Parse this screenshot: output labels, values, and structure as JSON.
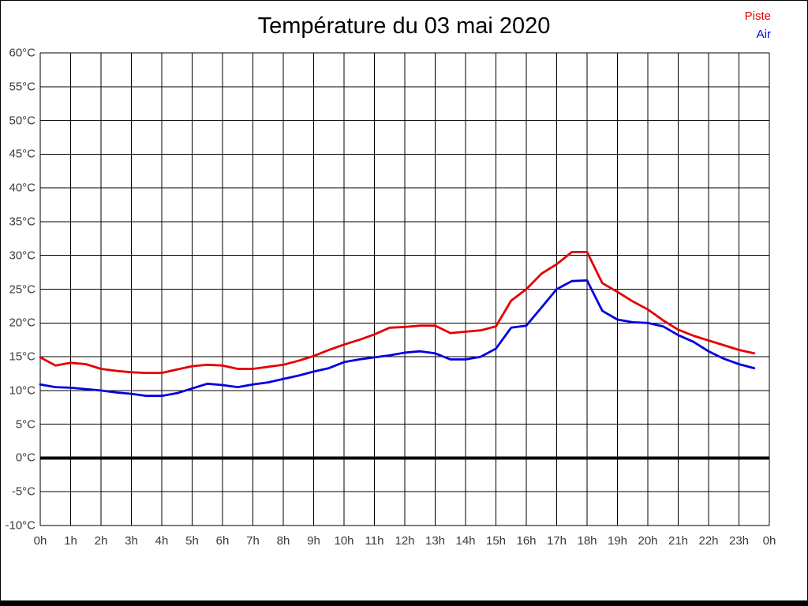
{
  "title": "Température du 03 mai 2020",
  "chart_data": {
    "type": "line",
    "title": "Température du 03 mai 2020",
    "xlabel": "",
    "ylabel": "",
    "x_unit": "hours",
    "xlim": [
      0,
      24
    ],
    "ylim": [
      -10,
      60
    ],
    "grid": true,
    "legend_position": "top-right",
    "axis_color": "#000000",
    "tick_label_color": "#3a3a3a",
    "zero_line": {
      "value": 0,
      "color": "#000000",
      "width": 4
    },
    "x": [
      0,
      0.5,
      1,
      1.5,
      2,
      2.5,
      3,
      3.5,
      4,
      4.5,
      5,
      5.5,
      6,
      6.5,
      7,
      7.5,
      8,
      8.5,
      9,
      9.5,
      10,
      10.5,
      11,
      11.5,
      12,
      12.5,
      13,
      13.5,
      14,
      14.5,
      15,
      15.5,
      16,
      16.5,
      17,
      17.5,
      18,
      18.5,
      19,
      19.5,
      20,
      20.5,
      21,
      21.5,
      22,
      22.5,
      23,
      23.5
    ],
    "series": [
      {
        "name": "Piste",
        "color": "#e40000",
        "values": [
          14.9,
          13.7,
          14.1,
          13.9,
          13.2,
          12.9,
          12.7,
          12.6,
          12.6,
          13.1,
          13.6,
          13.8,
          13.7,
          13.2,
          13.2,
          13.5,
          13.8,
          14.4,
          15.1,
          16.0,
          16.8,
          17.5,
          18.3,
          19.3,
          19.4,
          19.6,
          19.6,
          18.5,
          18.7,
          18.9,
          19.5,
          23.3,
          25.0,
          27.3,
          28.7,
          30.5,
          30.5,
          25.9,
          24.6,
          23.2,
          22.0,
          20.4,
          19.0,
          18.1,
          17.4,
          16.7,
          16.0,
          15.5
        ]
      },
      {
        "name": "Air",
        "color": "#0000e0",
        "values": [
          10.9,
          10.5,
          10.4,
          10.2,
          10.0,
          9.7,
          9.5,
          9.2,
          9.2,
          9.6,
          10.3,
          11.0,
          10.8,
          10.5,
          10.9,
          11.2,
          11.7,
          12.2,
          12.8,
          13.3,
          14.2,
          14.6,
          14.9,
          15.2,
          15.6,
          15.8,
          15.5,
          14.6,
          14.6,
          15.0,
          16.2,
          19.3,
          19.6,
          22.3,
          25.0,
          26.2,
          26.3,
          21.8,
          20.5,
          20.1,
          20.0,
          19.5,
          18.2,
          17.2,
          15.8,
          14.7,
          13.9,
          13.3
        ]
      }
    ],
    "y_ticks": [
      60,
      55,
      50,
      45,
      40,
      35,
      30,
      25,
      20,
      15,
      10,
      5,
      0,
      -5,
      -10
    ],
    "y_tick_labels": [
      "60°C",
      "55°C",
      "50°C",
      "45°C",
      "40°C",
      "35°C",
      "30°C",
      "25°C",
      "20°C",
      "15°C",
      "10°C",
      "5°C",
      "0°C",
      "-5°C",
      "-10°C"
    ],
    "x_tick_hours": [
      0,
      1,
      2,
      3,
      4,
      5,
      6,
      7,
      8,
      9,
      10,
      11,
      12,
      13,
      14,
      15,
      16,
      17,
      18,
      19,
      20,
      21,
      22,
      23,
      24
    ],
    "x_tick_labels": [
      "0h",
      "1h",
      "2h",
      "3h",
      "4h",
      "5h",
      "6h",
      "7h",
      "8h",
      "9h",
      "10h",
      "11h",
      "12h",
      "13h",
      "14h",
      "15h",
      "16h",
      "17h",
      "18h",
      "19h",
      "20h",
      "21h",
      "22h",
      "23h",
      "0h"
    ]
  }
}
